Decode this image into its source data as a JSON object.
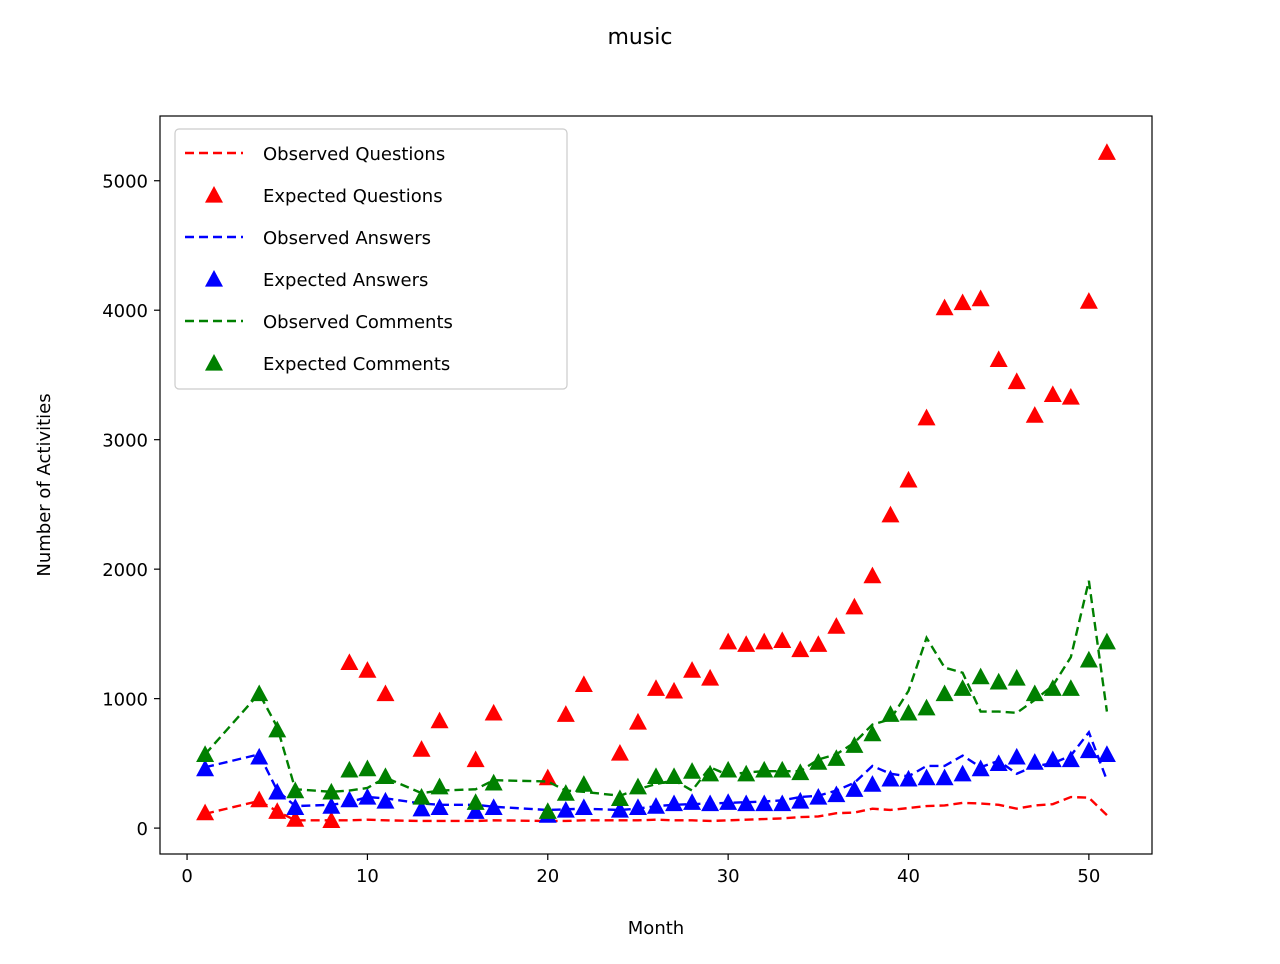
{
  "chart_data": {
    "type": "line",
    "title": "music",
    "xlabel": "Month",
    "ylabel": "Number of Activities",
    "xlim": [
      -1.5,
      53.5
    ],
    "ylim": [
      -200,
      5500
    ],
    "xticks": [
      0,
      10,
      20,
      30,
      40,
      50
    ],
    "yticks": [
      0,
      1000,
      2000,
      3000,
      4000,
      5000
    ],
    "grid": false,
    "legend_position": "upper-left",
    "x": [
      1,
      4,
      5,
      6,
      8,
      9,
      10,
      11,
      13,
      14,
      16,
      17,
      20,
      21,
      22,
      24,
      25,
      26,
      27,
      28,
      29,
      30,
      31,
      32,
      33,
      34,
      35,
      36,
      37,
      38,
      39,
      40,
      41,
      42,
      43,
      44,
      45,
      46,
      47,
      48,
      49,
      50,
      51
    ],
    "series": [
      {
        "name": "Observed Questions",
        "style": "dashed-line",
        "color": "#ff0000",
        "values": [
          110,
          210,
          130,
          60,
          60,
          60,
          65,
          60,
          55,
          55,
          55,
          60,
          55,
          55,
          60,
          60,
          60,
          65,
          60,
          60,
          55,
          60,
          65,
          70,
          75,
          85,
          90,
          115,
          120,
          150,
          140,
          155,
          170,
          175,
          195,
          190,
          180,
          150,
          175,
          185,
          240,
          235,
          100
        ]
      },
      {
        "name": "Expected Questions",
        "style": "triangle-markers",
        "color": "#ff0000",
        "values": [
          120,
          220,
          130,
          70,
          60,
          1280,
          1220,
          1040,
          610,
          830,
          530,
          890,
          390,
          880,
          1110,
          580,
          820,
          1080,
          1060,
          1220,
          1160,
          1440,
          1420,
          1440,
          1450,
          1380,
          1420,
          1560,
          1710,
          1950,
          2420,
          2690,
          3170,
          4020,
          4060,
          4090,
          3620,
          3450,
          3190,
          3350,
          3330,
          4070,
          5220
        ]
      },
      {
        "name": "Observed Answers",
        "style": "dashed-line",
        "color": "#0000ff",
        "values": [
          470,
          570,
          290,
          170,
          180,
          200,
          240,
          230,
          190,
          180,
          180,
          165,
          140,
          145,
          150,
          140,
          150,
          170,
          180,
          185,
          190,
          195,
          200,
          205,
          215,
          240,
          250,
          290,
          350,
          480,
          420,
          400,
          480,
          480,
          560,
          470,
          520,
          420,
          480,
          500,
          560,
          740,
          370
        ]
      },
      {
        "name": "Expected Answers",
        "style": "triangle-markers",
        "color": "#0000ff",
        "values": [
          460,
          550,
          280,
          160,
          170,
          220,
          240,
          210,
          150,
          160,
          130,
          160,
          100,
          140,
          160,
          140,
          160,
          170,
          190,
          200,
          190,
          200,
          190,
          190,
          190,
          210,
          240,
          260,
          300,
          340,
          380,
          380,
          390,
          390,
          420,
          460,
          500,
          550,
          510,
          530,
          530,
          600,
          570
        ]
      },
      {
        "name": "Observed Comments",
        "style": "dashed-line",
        "color": "#008000",
        "values": [
          570,
          1040,
          780,
          300,
          280,
          290,
          310,
          390,
          270,
          290,
          300,
          370,
          360,
          290,
          280,
          250,
          300,
          340,
          370,
          290,
          470,
          410,
          430,
          440,
          440,
          440,
          530,
          570,
          660,
          800,
          840,
          1060,
          1470,
          1240,
          1200,
          900,
          900,
          890,
          990,
          1100,
          1320,
          1910,
          900
        ]
      },
      {
        "name": "Expected Comments",
        "style": "triangle-markers",
        "color": "#008000",
        "values": [
          570,
          1040,
          760,
          290,
          280,
          450,
          460,
          400,
          240,
          320,
          200,
          350,
          130,
          270,
          340,
          230,
          320,
          400,
          400,
          440,
          420,
          450,
          420,
          450,
          450,
          430,
          510,
          540,
          640,
          730,
          880,
          890,
          930,
          1040,
          1080,
          1170,
          1130,
          1160,
          1040,
          1080,
          1080,
          1300,
          1440
        ]
      }
    ]
  }
}
